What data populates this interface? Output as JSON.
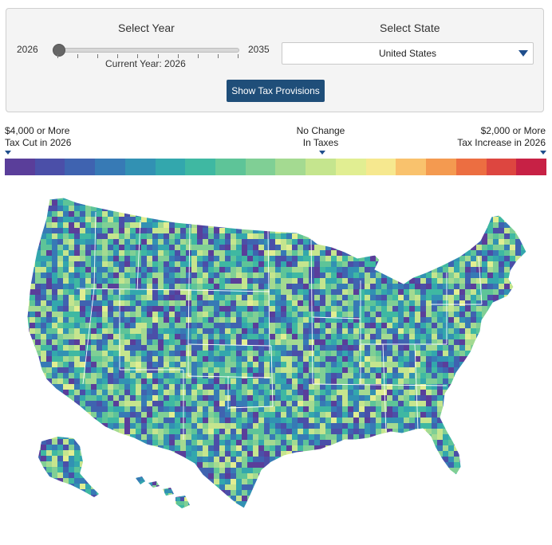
{
  "controls": {
    "year_label": "Select Year",
    "year_min": "2026",
    "year_max": "2035",
    "current_year_text": "Current Year: 2026",
    "year_slider": {
      "min": 2026,
      "max": 2035,
      "value": 2026
    },
    "state_label": "Select State",
    "state_selected": "United States",
    "button_label": "Show Tax Provisions"
  },
  "legend": {
    "left_line1": "$4,000 or More",
    "left_line2": "Tax Cut in 2026",
    "mid_line1": "No Change",
    "mid_line2": "In Taxes",
    "right_line1": "$2,000 or More",
    "right_line2": "Tax Increase in 2026",
    "colors": [
      "#5a3e9a",
      "#4b4fa8",
      "#3f63b0",
      "#377ab5",
      "#3291b3",
      "#33a7ad",
      "#3fb8a2",
      "#5ec498",
      "#80cf95",
      "#a4da91",
      "#c5e58e",
      "#e1ee92",
      "#f6e88f",
      "#f9c26d",
      "#f49a50",
      "#ec6e41",
      "#dd4640",
      "#c72145"
    ]
  },
  "map": {
    "title": "United States counties tax change map",
    "outline_color": "#ffffff"
  },
  "accent_colors": {
    "button": "#1f4e79",
    "marker": "#1f4e8c"
  }
}
